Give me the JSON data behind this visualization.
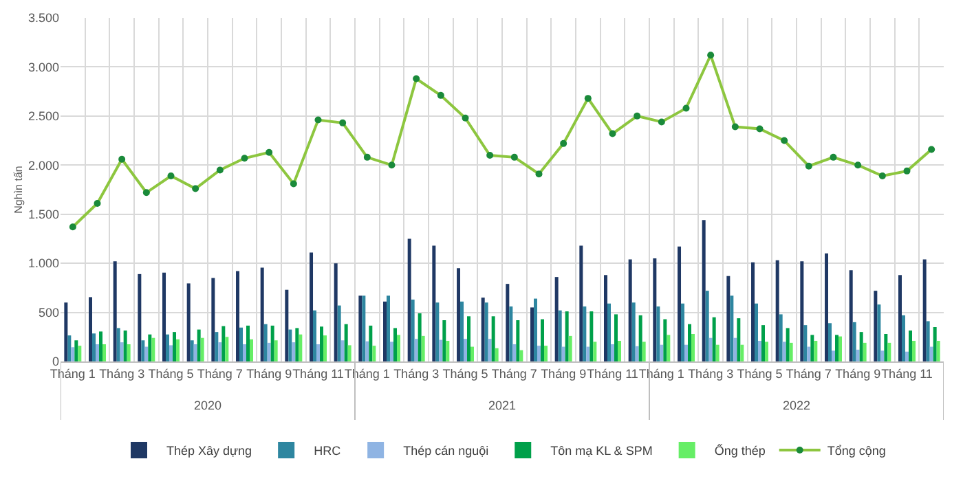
{
  "chart_data": {
    "type": "bar",
    "ylabel": "Nghìn tấn",
    "categories": [
      "Tháng 1",
      null,
      "Tháng 3",
      null,
      "Tháng 5",
      null,
      "Tháng 7",
      null,
      "Tháng 9",
      null,
      "Tháng 11",
      null,
      "Tháng 1",
      null,
      "Tháng 3",
      null,
      "Tháng 5",
      null,
      "Tháng 7",
      null,
      "Tháng 9",
      null,
      "Tháng 11",
      null,
      "Tháng 1",
      null,
      "Tháng 3",
      null,
      "Tháng 5",
      null,
      "Tháng 7",
      null,
      "Tháng 9",
      null,
      "Tháng 11",
      null
    ],
    "series": [
      {
        "name": "Thép Xây dựng",
        "color": "#1f3864",
        "values": [
          600,
          655,
          1020,
          890,
          905,
          795,
          850,
          920,
          955,
          730,
          1110,
          1000,
          670,
          610,
          1250,
          1180,
          950,
          650,
          790,
          550,
          860,
          1180,
          880,
          1040,
          1050,
          1170,
          1440,
          870,
          1010,
          1030,
          1020,
          1100,
          930,
          720,
          880,
          1040
        ]
      },
      {
        "name": "HRC",
        "color": "#2e86a0",
        "values": [
          265,
          285,
          340,
          215,
          275,
          215,
          300,
          345,
          380,
          325,
          520,
          570,
          670,
          670,
          630,
          600,
          610,
          600,
          560,
          640,
          520,
          560,
          590,
          600,
          560,
          590,
          720,
          670,
          590,
          480,
          370,
          390,
          400,
          580,
          470,
          410
        ]
      },
      {
        "name": "Thép cán nguội",
        "color": "#8fb4e3",
        "values": [
          145,
          175,
          195,
          150,
          165,
          175,
          195,
          175,
          190,
          195,
          175,
          215,
          205,
          200,
          230,
          220,
          230,
          230,
          175,
          160,
          150,
          150,
          175,
          155,
          170,
          170,
          240,
          240,
          210,
          200,
          150,
          110,
          120,
          110,
          100,
          150
        ]
      },
      {
        "name": "Tôn mạ KL & SPM",
        "color": "#00a04a",
        "values": [
          215,
          305,
          315,
          275,
          300,
          325,
          360,
          365,
          365,
          340,
          355,
          380,
          365,
          340,
          490,
          420,
          460,
          460,
          420,
          430,
          510,
          510,
          480,
          470,
          430,
          380,
          450,
          440,
          370,
          340,
          270,
          270,
          300,
          280,
          315,
          350
        ]
      },
      {
        "name": "Ống thép",
        "color": "#66ee66",
        "values": [
          160,
          175,
          175,
          240,
          225,
          240,
          250,
          225,
          215,
          275,
          265,
          165,
          160,
          270,
          260,
          210,
          150,
          135,
          115,
          160,
          260,
          200,
          210,
          200,
          270,
          280,
          170,
          170,
          200,
          190,
          210,
          255,
          190,
          190,
          210,
          210
        ]
      },
      {
        "name": "Tổng cộng",
        "type": "line",
        "color": "#8dc63f",
        "marker": "circle",
        "values": [
          1370,
          1610,
          2060,
          1720,
          1890,
          1760,
          1950,
          2070,
          2130,
          1810,
          2460,
          2430,
          2080,
          2000,
          2880,
          2710,
          2480,
          2100,
          2080,
          1910,
          2220,
          2680,
          2320,
          2500,
          2440,
          2580,
          3120,
          2390,
          2370,
          2250,
          1990,
          2080,
          2000,
          1890,
          1940,
          2160
        ]
      }
    ],
    "annotations": [
      "2020",
      "2021",
      "2022"
    ],
    "ylim": [
      0,
      3500
    ],
    "yticks": [
      0,
      500,
      {
        "value": 1000,
        "label": "1.000"
      },
      {
        "value": 1500,
        "label": "1.500"
      },
      {
        "value": 2000,
        "label": "2.000"
      },
      {
        "value": 2500,
        "label": "2.500"
      },
      {
        "value": 3000,
        "label": "3.000"
      },
      {
        "value": 3500,
        "label": "3.500"
      }
    ],
    "grid": true,
    "legend": "bottom"
  }
}
